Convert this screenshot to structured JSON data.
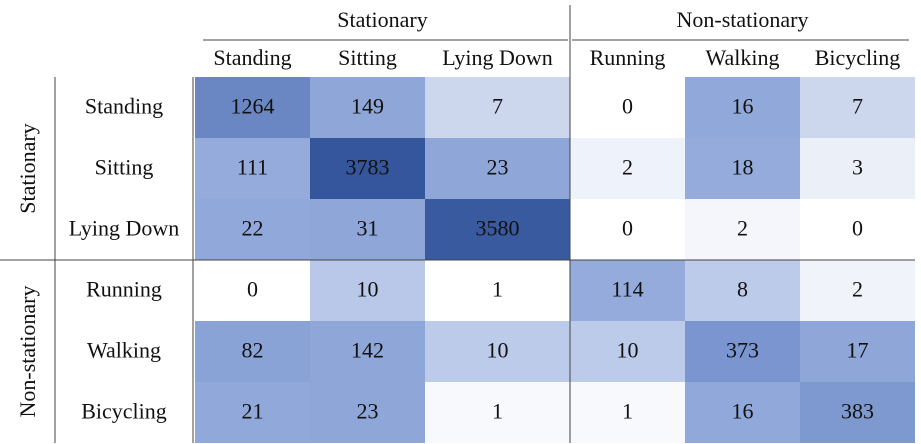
{
  "table": {
    "column_groups": [
      "Stationary",
      "Non-stationary"
    ],
    "columns": [
      "Standing",
      "Sitting",
      "Lying Down",
      "Running",
      "Walking",
      "Bicycling"
    ],
    "row_groups": [
      "Stationary",
      "Non-stationary"
    ],
    "rows": [
      {
        "label": "Standing",
        "cells": [
          1264,
          149,
          7,
          0,
          16,
          7
        ]
      },
      {
        "label": "Sitting",
        "cells": [
          111,
          3783,
          23,
          2,
          18,
          3
        ]
      },
      {
        "label": "Lying Down",
        "cells": [
          22,
          31,
          3580,
          0,
          2,
          0
        ]
      },
      {
        "label": "Running",
        "cells": [
          0,
          10,
          1,
          114,
          8,
          2
        ]
      },
      {
        "label": "Walking",
        "cells": [
          82,
          142,
          10,
          10,
          373,
          17
        ]
      },
      {
        "label": "Bicycling",
        "cells": [
          21,
          23,
          1,
          1,
          16,
          383
        ]
      }
    ],
    "cell_colors": [
      [
        "#6a87c4",
        "#8ea6d8",
        "#ccd7ee",
        "#ffffff",
        "#91a9da",
        "#ccd7ee"
      ],
      [
        "#94abdb",
        "#35559c",
        "#8ea6d8",
        "#eef2fa",
        "#94abdb",
        "#ebeff8"
      ],
      [
        "#91a9da",
        "#8ea6d8",
        "#3a5aa0",
        "#ffffff",
        "#f4f6fb",
        "#ffffff"
      ],
      [
        "#ffffff",
        "#b9c8e8",
        "#ffffff",
        "#94abdb",
        "#bccbe9",
        "#f0f3fa"
      ],
      [
        "#8aa3d6",
        "#8ea6d8",
        "#bccbe9",
        "#bccbe9",
        "#7a95cf",
        "#8ea6d8"
      ],
      [
        "#91a9da",
        "#8ea6d8",
        "#f8f9fc",
        "#f8f9fc",
        "#91a9da",
        "#7e98d0"
      ]
    ]
  }
}
